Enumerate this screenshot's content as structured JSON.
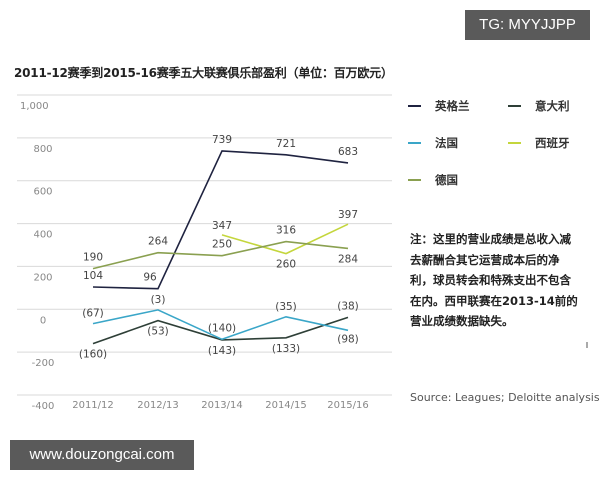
{
  "watermarks": {
    "top_right": "TG: MYYJJPP",
    "bottom_left": "www.douzongcai.com"
  },
  "title": "2011-12赛季到2015-16赛季五大联赛俱乐部盈利（单位：百万欧元）",
  "legend": [
    {
      "label": "英格兰",
      "color": "#1f2340"
    },
    {
      "label": "意大利",
      "color": "#2e3f37"
    },
    {
      "label": "法国",
      "color": "#3aa6c8"
    },
    {
      "label": "西班牙",
      "color": "#c4d63c"
    },
    {
      "label": "德国",
      "color": "#8aa050"
    }
  ],
  "note": "注：这里的营业成绩是总收入减去薪酬合其它运营成本后的净利，球员转会和特殊支出不包含在内。西甲联赛在2013-14前的营业成绩数据缺失。",
  "source": "Source: Leagues; Deloitte analysis.",
  "chart_data": {
    "type": "line",
    "title": "2011-12赛季到2015-16赛季五大联赛俱乐部盈利（单位：百万欧元）",
    "xlabel": "",
    "ylabel": "百万欧元",
    "categories": [
      "2011/12",
      "2012/13",
      "2013/14",
      "2014/15",
      "2015/16"
    ],
    "yticks": [
      "1,000",
      "800",
      "600",
      "400",
      "200",
      "0",
      "-200",
      "-400"
    ],
    "ylim": [
      -400,
      1000
    ],
    "grid": true,
    "legend_position": "right",
    "series": [
      {
        "name": "英格兰",
        "color": "#1f2340",
        "values": [
          104,
          96,
          739,
          721,
          683
        ],
        "labels": [
          "104",
          "96",
          "739",
          "721",
          "683"
        ]
      },
      {
        "name": "意大利",
        "color": "#2e3f37",
        "values": [
          -160,
          -53,
          -143,
          -133,
          -38
        ],
        "labels": [
          "(160)",
          "(53)",
          "(143)",
          "(133)",
          "(38)"
        ]
      },
      {
        "name": "法国",
        "color": "#3aa6c8",
        "values": [
          -67,
          -3,
          -140,
          -35,
          -98
        ],
        "labels": [
          "(67)",
          "(3)",
          "(140)",
          "(35)",
          "(98)"
        ]
      },
      {
        "name": "西班牙",
        "color": "#c4d63c",
        "values": [
          null,
          null,
          347,
          260,
          397
        ],
        "labels": [
          "",
          "",
          "347",
          "260",
          "397"
        ]
      },
      {
        "name": "德国",
        "color": "#8aa050",
        "values": [
          190,
          264,
          250,
          316,
          284
        ],
        "labels": [
          "190",
          "264",
          "250",
          "316",
          "284"
        ]
      }
    ]
  }
}
